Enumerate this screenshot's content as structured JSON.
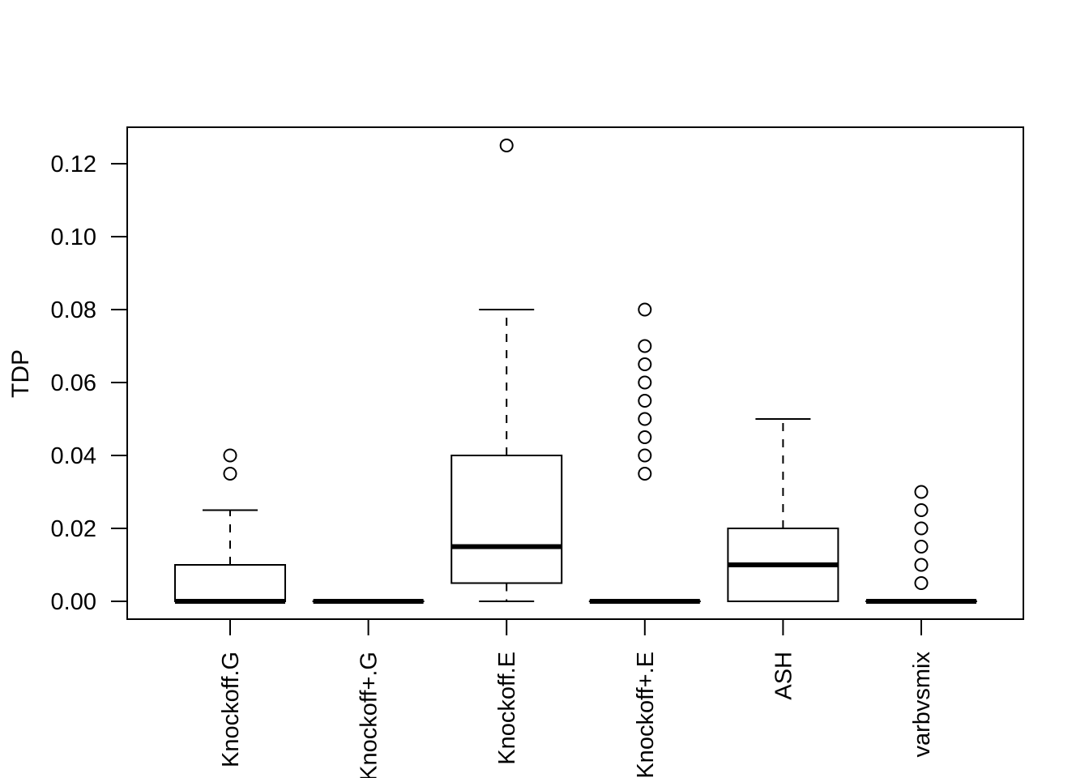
{
  "chart_data": {
    "type": "boxplot",
    "title": "",
    "xlabel": "",
    "ylabel": "TDP",
    "ylim": [
      -0.005,
      0.13
    ],
    "yticks": [
      0.0,
      0.02,
      0.04,
      0.06,
      0.08,
      0.1,
      0.12
    ],
    "ytick_labels": [
      "0.00",
      "0.02",
      "0.04",
      "0.06",
      "0.08",
      "0.10",
      "0.12"
    ],
    "grid": false,
    "legend": "none",
    "categories": [
      "Knockoff.G",
      "Knockoff+.G",
      "Knockoff.E",
      "Knockoff+.E",
      "ASH",
      "varbvsmix"
    ],
    "series": [
      {
        "stats": {
          "min": 0.0,
          "q1": 0.0,
          "median": 0.0,
          "q3": 0.01,
          "max": 0.025
        },
        "outliers": [
          0.035,
          0.04
        ]
      },
      {
        "stats": {
          "min": 0.0,
          "q1": 0.0,
          "median": 0.0,
          "q3": 0.0,
          "max": 0.0
        },
        "outliers": []
      },
      {
        "stats": {
          "min": 0.0,
          "q1": 0.005,
          "median": 0.015,
          "q3": 0.04,
          "max": 0.08
        },
        "outliers": [
          0.125
        ]
      },
      {
        "stats": {
          "min": 0.0,
          "q1": 0.0,
          "median": 0.0,
          "q3": 0.0,
          "max": 0.0
        },
        "outliers": [
          0.035,
          0.04,
          0.045,
          0.05,
          0.055,
          0.06,
          0.065,
          0.07,
          0.08
        ]
      },
      {
        "stats": {
          "min": 0.0,
          "q1": 0.0,
          "median": 0.01,
          "q3": 0.02,
          "max": 0.05
        },
        "outliers": []
      },
      {
        "stats": {
          "min": 0.0,
          "q1": 0.0,
          "median": 0.0,
          "q3": 0.0,
          "max": 0.0
        },
        "outliers": [
          0.005,
          0.01,
          0.015,
          0.02,
          0.025,
          0.03
        ]
      }
    ]
  }
}
